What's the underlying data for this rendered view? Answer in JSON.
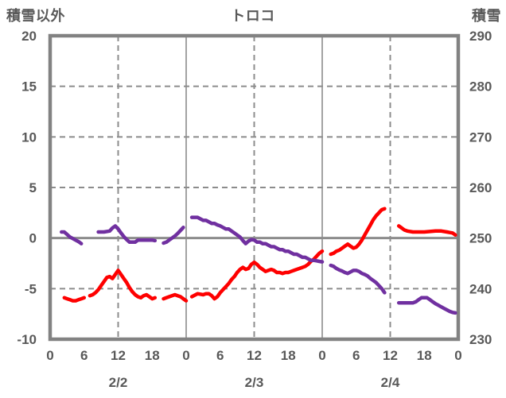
{
  "page": {
    "title_left": "積雪以外",
    "title_center": "トロコ",
    "title_right": "積雪"
  },
  "colors": {
    "background": "#ffffff",
    "axis_gray": "#828282",
    "grid_gray": "#8c8c8c",
    "text_gray": "#595959",
    "line_red": "#fe0000",
    "line_purple": "#7030a0"
  },
  "chart_data": {
    "type": "line",
    "title": "トロコ",
    "left_axis": {
      "label": "積雪以外",
      "range": [
        -10,
        20
      ],
      "ticks": [
        {
          "value": 20,
          "label": "20"
        },
        {
          "value": 15,
          "label": "15"
        },
        {
          "value": 10,
          "label": "10"
        },
        {
          "value": 5,
          "label": "5"
        },
        {
          "value": 0,
          "label": "0"
        },
        {
          "value": -5,
          "label": "-5"
        },
        {
          "value": -10,
          "label": "-10"
        }
      ]
    },
    "right_axis": {
      "label": "積雪",
      "range": [
        230,
        290
      ],
      "ticks": [
        {
          "value": 290,
          "label": "290"
        },
        {
          "value": 280,
          "label": "280"
        },
        {
          "value": 270,
          "label": "270"
        },
        {
          "value": 260,
          "label": "260"
        },
        {
          "value": 250,
          "label": "250"
        },
        {
          "value": 240,
          "label": "240"
        },
        {
          "value": 230,
          "label": "230"
        }
      ]
    },
    "x_axis": {
      "range_hours": [
        0,
        72
      ],
      "ticks": [
        {
          "hour": 0,
          "label": "0"
        },
        {
          "hour": 6,
          "label": "6"
        },
        {
          "hour": 12,
          "label": "12"
        },
        {
          "hour": 18,
          "label": "18"
        },
        {
          "hour": 24,
          "label": "0"
        },
        {
          "hour": 30,
          "label": "6"
        },
        {
          "hour": 36,
          "label": "12"
        },
        {
          "hour": 42,
          "label": "18"
        },
        {
          "hour": 48,
          "label": "0"
        },
        {
          "hour": 54,
          "label": "6"
        },
        {
          "hour": 60,
          "label": "12"
        },
        {
          "hour": 66,
          "label": "18"
        },
        {
          "hour": 72,
          "label": "0"
        }
      ],
      "date_labels": [
        {
          "hour": 12,
          "label": "2/2"
        },
        {
          "hour": 36,
          "label": "2/3"
        },
        {
          "hour": 60,
          "label": "2/4"
        }
      ]
    },
    "grid": {
      "h_dashed_left_values": [
        15,
        10,
        5,
        -5
      ],
      "h_solid_left_values": [
        0
      ],
      "v_dashed_hours": [
        12,
        36,
        60
      ],
      "v_solid_hours": [
        24,
        48
      ]
    },
    "series": [
      {
        "name": "積雪以外",
        "axis": "left",
        "color": "#fe0000",
        "segments": [
          [
            [
              2.5,
              -5.9
            ],
            [
              3,
              -6.0
            ],
            [
              3.5,
              -6.1
            ],
            [
              4,
              -6.2
            ],
            [
              4.5,
              -6.2
            ],
            [
              5,
              -6.1
            ],
            [
              5.5,
              -6.0
            ],
            [
              6,
              -5.9
            ]
          ],
          [
            [
              7,
              -5.7
            ],
            [
              7.5,
              -5.6
            ],
            [
              8,
              -5.4
            ],
            [
              8.5,
              -5.1
            ],
            [
              9,
              -4.7
            ],
            [
              9.5,
              -4.3
            ],
            [
              10,
              -3.9
            ],
            [
              10.5,
              -3.8
            ],
            [
              11,
              -4.0
            ],
            [
              11.5,
              -3.6
            ],
            [
              12,
              -3.2
            ],
            [
              12.5,
              -3.6
            ],
            [
              13,
              -4.0
            ],
            [
              13.5,
              -4.4
            ],
            [
              14,
              -4.9
            ],
            [
              14.5,
              -5.3
            ],
            [
              15,
              -5.6
            ],
            [
              15.5,
              -5.8
            ],
            [
              16,
              -5.9
            ],
            [
              16.5,
              -5.7
            ],
            [
              17,
              -5.6
            ],
            [
              17.5,
              -5.8
            ],
            [
              18,
              -6.0
            ],
            [
              18.5,
              -5.9
            ]
          ],
          [
            [
              20,
              -6.0
            ],
            [
              20.5,
              -5.9
            ],
            [
              21,
              -5.8
            ],
            [
              21.5,
              -5.7
            ],
            [
              22,
              -5.6
            ],
            [
              22.5,
              -5.7
            ],
            [
              23,
              -5.8
            ],
            [
              23.5,
              -6.0
            ],
            [
              24,
              -6.2
            ]
          ],
          [
            [
              25,
              -5.8
            ],
            [
              26,
              -5.5
            ],
            [
              27,
              -5.6
            ],
            [
              27.5,
              -5.5
            ],
            [
              28,
              -5.5
            ],
            [
              28.5,
              -5.7
            ],
            [
              29,
              -6.0
            ],
            [
              29.5,
              -5.8
            ],
            [
              30,
              -5.4
            ],
            [
              30.5,
              -5.1
            ],
            [
              31,
              -4.8
            ],
            [
              31.5,
              -4.5
            ],
            [
              32,
              -4.1
            ],
            [
              32.5,
              -3.8
            ],
            [
              33,
              -3.4
            ],
            [
              33.5,
              -3.1
            ],
            [
              34,
              -2.9
            ],
            [
              34.5,
              -3.1
            ],
            [
              35,
              -3.0
            ],
            [
              35.5,
              -2.6
            ],
            [
              36,
              -2.4
            ],
            [
              36.5,
              -2.6
            ],
            [
              37,
              -2.9
            ],
            [
              37.5,
              -3.1
            ],
            [
              38,
              -3.3
            ],
            [
              38.5,
              -3.2
            ],
            [
              39,
              -3.1
            ],
            [
              39.5,
              -3.2
            ],
            [
              40,
              -3.4
            ],
            [
              40.5,
              -3.4
            ],
            [
              41,
              -3.5
            ],
            [
              41.5,
              -3.4
            ],
            [
              42,
              -3.4
            ],
            [
              42.5,
              -3.3
            ],
            [
              43,
              -3.2
            ],
            [
              43.5,
              -3.1
            ],
            [
              44,
              -3.0
            ],
            [
              44.5,
              -2.9
            ],
            [
              45,
              -2.8
            ],
            [
              45.5,
              -2.6
            ],
            [
              46,
              -2.3
            ],
            [
              46.5,
              -2.1
            ],
            [
              47,
              -1.8
            ],
            [
              47.5,
              -1.5
            ],
            [
              48,
              -1.3
            ]
          ],
          [
            [
              49.5,
              -1.6
            ],
            [
              50,
              -1.5
            ],
            [
              50.5,
              -1.3
            ],
            [
              51,
              -1.2
            ],
            [
              51.5,
              -1.0
            ],
            [
              52,
              -0.8
            ],
            [
              52.5,
              -0.6
            ],
            [
              53,
              -0.8
            ],
            [
              53.5,
              -1.0
            ],
            [
              54,
              -0.9
            ],
            [
              54.5,
              -0.6
            ],
            [
              55,
              -0.2
            ],
            [
              55.5,
              0.3
            ],
            [
              56,
              0.8
            ],
            [
              56.5,
              1.3
            ],
            [
              57,
              1.8
            ],
            [
              57.5,
              2.2
            ],
            [
              58,
              2.5
            ],
            [
              58.5,
              2.8
            ],
            [
              59,
              2.9
            ]
          ],
          [
            [
              61.5,
              1.2
            ],
            [
              62,
              1.0
            ],
            [
              62.5,
              0.8
            ],
            [
              63,
              0.7
            ],
            [
              64,
              0.6
            ],
            [
              65,
              0.6
            ],
            [
              66,
              0.6
            ],
            [
              67,
              0.65
            ],
            [
              68,
              0.7
            ],
            [
              69,
              0.7
            ],
            [
              70,
              0.6
            ],
            [
              70.5,
              0.55
            ],
            [
              71,
              0.5
            ],
            [
              71.5,
              0.3
            ]
          ]
        ]
      },
      {
        "name": "積雪",
        "axis": "right",
        "color": "#7030a0",
        "segments": [
          [
            [
              2,
              251.2
            ],
            [
              2.5,
              251.2
            ],
            [
              3,
              250.7
            ],
            [
              3.5,
              250.2
            ],
            [
              4,
              249.9
            ],
            [
              4.5,
              249.6
            ],
            [
              5,
              249.3
            ],
            [
              5.5,
              248.9
            ]
          ],
          [
            [
              8.5,
              251.2
            ],
            [
              9.5,
              251.2
            ],
            [
              10.5,
              251.4
            ],
            [
              11,
              252.0
            ],
            [
              11.5,
              252.4
            ],
            [
              12,
              251.8
            ],
            [
              12.5,
              251.0
            ],
            [
              13,
              250.3
            ],
            [
              13.5,
              249.7
            ],
            [
              14,
              249.2
            ],
            [
              14.5,
              249.2
            ],
            [
              15,
              249.2
            ],
            [
              15.5,
              249.6
            ],
            [
              16.5,
              249.6
            ],
            [
              17.5,
              249.6
            ],
            [
              18,
              249.6
            ],
            [
              18.5,
              249.5
            ]
          ],
          [
            [
              20,
              249.0
            ],
            [
              20.5,
              249.2
            ],
            [
              21,
              249.6
            ],
            [
              21.5,
              250.0
            ],
            [
              22,
              250.4
            ],
            [
              22.5,
              250.9
            ],
            [
              23,
              251.5
            ],
            [
              23.5,
              252.1
            ]
          ],
          [
            [
              25,
              254.1
            ],
            [
              25.5,
              254.1
            ],
            [
              26,
              254.1
            ],
            [
              26.5,
              253.8
            ],
            [
              27,
              253.5
            ],
            [
              27.5,
              253.5
            ],
            [
              28,
              253.2
            ],
            [
              28.5,
              252.9
            ],
            [
              29,
              252.9
            ],
            [
              29.5,
              252.6
            ],
            [
              30,
              252.4
            ],
            [
              30.5,
              252.1
            ],
            [
              31,
              251.8
            ],
            [
              31.5,
              251.8
            ],
            [
              32,
              251.4
            ],
            [
              32.5,
              251.0
            ],
            [
              33,
              250.6
            ],
            [
              33.5,
              250.2
            ],
            [
              34,
              249.5
            ],
            [
              34.5,
              248.9
            ],
            [
              35,
              249.4
            ],
            [
              35.5,
              249.7
            ],
            [
              36,
              249.6
            ],
            [
              36.5,
              249.2
            ],
            [
              37,
              249.2
            ],
            [
              37.5,
              248.9
            ],
            [
              38,
              248.9
            ],
            [
              38.5,
              248.6
            ],
            [
              39,
              248.3
            ],
            [
              39.5,
              248.3
            ],
            [
              40,
              248.0
            ],
            [
              40.5,
              247.7
            ],
            [
              41,
              247.7
            ],
            [
              41.5,
              247.4
            ],
            [
              42,
              247.4
            ],
            [
              42.5,
              247.1
            ],
            [
              43,
              246.8
            ],
            [
              43.5,
              246.8
            ],
            [
              44,
              246.5
            ],
            [
              44.5,
              246.2
            ],
            [
              45,
              246.2
            ],
            [
              45.5,
              245.9
            ],
            [
              46,
              245.6
            ],
            [
              46.5,
              245.6
            ],
            [
              47,
              245.5
            ],
            [
              47.5,
              245.4
            ],
            [
              48,
              245.3
            ]
          ],
          [
            [
              49.5,
              244.6
            ],
            [
              50,
              244.4
            ],
            [
              50.5,
              244.0
            ],
            [
              51,
              243.7
            ],
            [
              51.5,
              243.5
            ],
            [
              52,
              243.2
            ],
            [
              52.5,
              243.0
            ],
            [
              53,
              243.3
            ],
            [
              53.5,
              243.6
            ],
            [
              54,
              243.6
            ],
            [
              54.5,
              243.4
            ],
            [
              55,
              243.0
            ],
            [
              55.5,
              242.8
            ],
            [
              56,
              242.5
            ],
            [
              56.5,
              242.0
            ],
            [
              57,
              241.6
            ],
            [
              57.5,
              241.2
            ],
            [
              58,
              240.6
            ],
            [
              58.5,
              240.0
            ],
            [
              59,
              239.2
            ]
          ],
          [
            [
              61.5,
              237.2
            ],
            [
              62.5,
              237.2
            ],
            [
              63.5,
              237.2
            ],
            [
              64,
              237.2
            ],
            [
              64.5,
              237.4
            ],
            [
              65,
              237.8
            ],
            [
              65.5,
              238.2
            ],
            [
              66,
              238.2
            ],
            [
              66.5,
              238.2
            ],
            [
              67,
              237.8
            ],
            [
              67.5,
              237.4
            ],
            [
              68,
              237.0
            ],
            [
              68.5,
              236.7
            ],
            [
              69,
              236.4
            ],
            [
              69.5,
              236.1
            ],
            [
              70,
              235.8
            ],
            [
              70.5,
              235.5
            ],
            [
              71,
              235.3
            ],
            [
              71.5,
              235.2
            ]
          ]
        ]
      }
    ]
  }
}
